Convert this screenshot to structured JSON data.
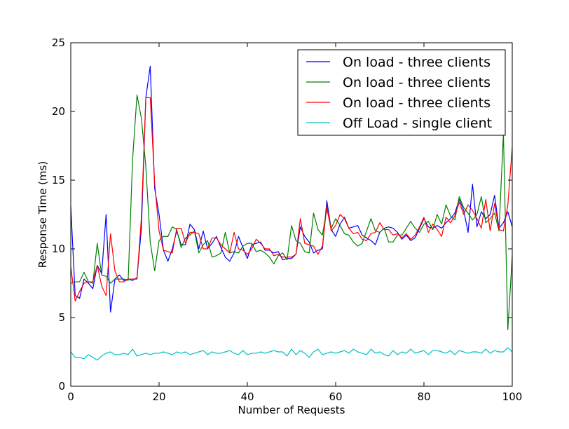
{
  "chart_data": {
    "type": "line",
    "title": "",
    "xlabel": "Number of Requests",
    "ylabel": "Response Time (ms)",
    "xlim": [
      0,
      100
    ],
    "ylim": [
      0,
      25
    ],
    "xticks": [
      0,
      20,
      40,
      60,
      80,
      100
    ],
    "yticks": [
      0,
      5,
      10,
      15,
      20,
      25
    ],
    "grid": false,
    "legend_position": "top-right",
    "x": [
      0,
      1,
      2,
      3,
      4,
      5,
      6,
      7,
      8,
      9,
      10,
      11,
      12,
      13,
      14,
      15,
      16,
      17,
      18,
      19,
      20,
      21,
      22,
      23,
      24,
      25,
      26,
      27,
      28,
      29,
      30,
      31,
      32,
      33,
      34,
      35,
      36,
      37,
      38,
      39,
      40,
      41,
      42,
      43,
      44,
      45,
      46,
      47,
      48,
      49,
      50,
      51,
      52,
      53,
      54,
      55,
      56,
      57,
      58,
      59,
      60,
      61,
      62,
      63,
      64,
      65,
      66,
      67,
      68,
      69,
      70,
      71,
      72,
      73,
      74,
      75,
      76,
      77,
      78,
      79,
      80,
      81,
      82,
      83,
      84,
      85,
      86,
      87,
      88,
      89,
      90,
      91,
      92,
      93,
      94,
      95,
      96,
      97,
      98,
      99,
      100
    ],
    "series": [
      {
        "name": "On load - three clients",
        "color": "#0000ff",
        "values": [
          13.1,
          6.6,
          6.4,
          7.8,
          7.5,
          7.1,
          8.8,
          8.2,
          12.5,
          5.4,
          7.8,
          8.1,
          7.7,
          7.8,
          7.7,
          7.9,
          11.5,
          21.0,
          23.3,
          14.4,
          12.5,
          9.9,
          9.1,
          10.0,
          11.3,
          10.3,
          10.3,
          11.8,
          11.4,
          10.0,
          11.3,
          10.0,
          10.4,
          10.9,
          10.1,
          9.4,
          9.1,
          9.7,
          10.9,
          10.1,
          9.3,
          10.3,
          10.4,
          10.5,
          9.9,
          9.9,
          9.7,
          9.8,
          9.2,
          9.3,
          9.3,
          9.6,
          11.6,
          10.9,
          10.5,
          9.7,
          9.9,
          10.0,
          13.5,
          11.4,
          10.9,
          11.8,
          12.3,
          11.5,
          11.6,
          11.7,
          11.0,
          10.8,
          10.6,
          10.3,
          11.2,
          11.5,
          11.6,
          11.5,
          11.2,
          10.7,
          11.0,
          10.6,
          10.8,
          11.5,
          12.2,
          11.6,
          11.5,
          11.7,
          11.5,
          11.9,
          12.2,
          12.6,
          13.6,
          12.8,
          11.2,
          14.7,
          11.6,
          12.7,
          12.2,
          12.5,
          13.9,
          11.5,
          11.9,
          12.7,
          11.6
        ]
      },
      {
        "name": "On load - three clients",
        "color": "#008000",
        "values": [
          7.5,
          7.6,
          7.6,
          8.3,
          7.6,
          7.5,
          10.4,
          8.1,
          8.0,
          7.5,
          7.8,
          7.8,
          7.8,
          7.7,
          16.5,
          21.2,
          19.5,
          16.0,
          10.5,
          8.4,
          10.6,
          10.9,
          10.9,
          11.6,
          11.4,
          10.1,
          10.8,
          11.0,
          11.3,
          9.7,
          10.3,
          10.6,
          9.4,
          9.5,
          9.7,
          11.2,
          9.7,
          9.8,
          9.7,
          10.2,
          10.4,
          10.4,
          9.8,
          9.9,
          9.7,
          9.4,
          8.9,
          9.5,
          9.7,
          9.2,
          11.7,
          10.6,
          10.4,
          9.8,
          9.7,
          12.6,
          11.4,
          11.0,
          12.9,
          11.5,
          12.2,
          11.7,
          11.1,
          11.0,
          10.5,
          10.2,
          10.4,
          11.3,
          12.2,
          11.3,
          11.2,
          11.5,
          10.5,
          10.5,
          11.0,
          11.0,
          11.5,
          12.0,
          11.5,
          11.2,
          11.8,
          12.0,
          11.4,
          12.5,
          11.8,
          13.2,
          12.4,
          12.1,
          13.8,
          13.0,
          12.6,
          12.1,
          12.5,
          13.8,
          11.9,
          12.2,
          12.6,
          11.3,
          18.4,
          4.1,
          9.5
        ]
      },
      {
        "name": "On load - three clients",
        "color": "#ff0000",
        "values": [
          8.7,
          6.2,
          6.9,
          7.5,
          7.6,
          7.6,
          8.8,
          7.3,
          6.6,
          11.1,
          8.4,
          7.6,
          7.6,
          7.8,
          7.8,
          7.8,
          12.3,
          21.0,
          21.0,
          14.8,
          11.3,
          9.9,
          9.8,
          9.7,
          11.5,
          11.5,
          10.4,
          11.2,
          11.2,
          11.1,
          10.0,
          10.0,
          10.8,
          10.8,
          10.3,
          10.0,
          9.7,
          11.2,
          10.0,
          9.9,
          9.6,
          10.0,
          10.7,
          10.4,
          10.0,
          10.0,
          9.5,
          9.6,
          9.4,
          9.4,
          9.4,
          9.6,
          12.2,
          10.4,
          10.3,
          10.2,
          9.6,
          10.2,
          13.1,
          11.3,
          11.7,
          12.5,
          12.2,
          11.5,
          11.1,
          11.2,
          10.7,
          10.6,
          11.1,
          11.2,
          11.9,
          11.4,
          11.4,
          11.0,
          11.1,
          10.8,
          11.1,
          10.7,
          11.0,
          11.6,
          12.3,
          11.2,
          11.8,
          11.4,
          10.9,
          12.3,
          11.9,
          12.4,
          13.4,
          12.5,
          13.2,
          12.8,
          12.2,
          11.5,
          13.6,
          11.3,
          13.3,
          11.4,
          11.3,
          13.2,
          17.4
        ]
      },
      {
        "name": "Off Load - single client",
        "color": "#00bfbf",
        "values": [
          2.5,
          2.1,
          2.1,
          2.0,
          2.3,
          2.1,
          1.9,
          2.2,
          2.4,
          2.5,
          2.3,
          2.3,
          2.4,
          2.3,
          2.7,
          2.2,
          2.3,
          2.4,
          2.3,
          2.4,
          2.4,
          2.5,
          2.4,
          2.3,
          2.5,
          2.4,
          2.5,
          2.3,
          2.4,
          2.5,
          2.6,
          2.3,
          2.5,
          2.4,
          2.4,
          2.5,
          2.6,
          2.4,
          2.3,
          2.6,
          2.3,
          2.4,
          2.4,
          2.5,
          2.4,
          2.5,
          2.6,
          2.5,
          2.5,
          2.2,
          2.7,
          2.3,
          2.6,
          2.4,
          2.1,
          2.5,
          2.7,
          2.3,
          2.4,
          2.5,
          2.4,
          2.5,
          2.6,
          2.4,
          2.7,
          2.5,
          2.4,
          2.3,
          2.7,
          2.4,
          2.5,
          2.3,
          2.2,
          2.6,
          2.3,
          2.5,
          2.4,
          2.7,
          2.4,
          2.5,
          2.6,
          2.3,
          2.6,
          2.6,
          2.5,
          2.4,
          2.6,
          2.3,
          2.6,
          2.5,
          2.4,
          2.5,
          2.5,
          2.4,
          2.7,
          2.4,
          2.6,
          2.5,
          2.5,
          2.8,
          2.5
        ]
      }
    ]
  }
}
